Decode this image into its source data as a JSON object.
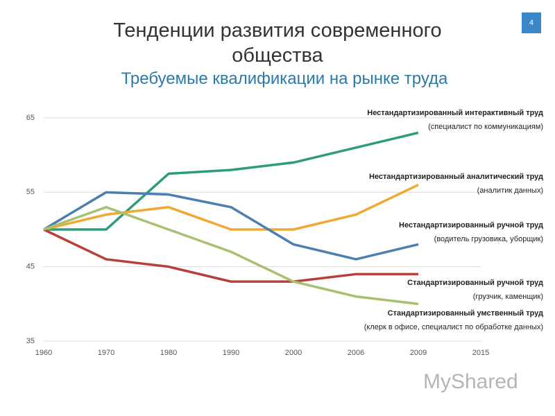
{
  "slide": {
    "page_number": "4",
    "watermark": "MyShared"
  },
  "chart_data": {
    "type": "line",
    "title": "Тенденции развития современного общества",
    "subtitle": "Требуемые квалификации на рынке труда",
    "categories": [
      "1960",
      "1970",
      "1980",
      "1990",
      "2000",
      "2006",
      "2009",
      "2015"
    ],
    "ylim": [
      35,
      65
    ],
    "yticks": [
      35,
      45,
      55,
      65
    ],
    "grid": true,
    "series": [
      {
        "name": "Нестандартизированный  интерактивный труд",
        "description": "(специалист по коммуникациям)",
        "color": "#2e9b7a",
        "values": [
          50,
          50,
          57.5,
          58,
          59,
          61,
          63,
          null
        ]
      },
      {
        "name": "Нестандартизированный  аналитический труд",
        "description": "(аналитик данных)",
        "color": "#f0a830",
        "values": [
          50,
          52,
          53,
          50,
          50,
          52,
          56,
          null
        ]
      },
      {
        "name": "Нестандартизированный  ручной труд",
        "description": "(водитель грузовика, уборщик)",
        "color": "#4a7fb0",
        "values": [
          50,
          55,
          54.7,
          53,
          48,
          46,
          48,
          null
        ]
      },
      {
        "name": "Стандартизированный  ручной труд",
        "description": "(грузчик, каменщик)",
        "color": "#b8403a",
        "values": [
          50,
          46,
          45,
          43,
          43,
          44,
          44,
          null
        ]
      },
      {
        "name": "Стандартизированный  умственный труд",
        "description": "(клерк в офисе, специалист по обработке данных)",
        "color": "#a8c070",
        "values": [
          50,
          53,
          50,
          47,
          43,
          41,
          40,
          null
        ]
      }
    ]
  }
}
